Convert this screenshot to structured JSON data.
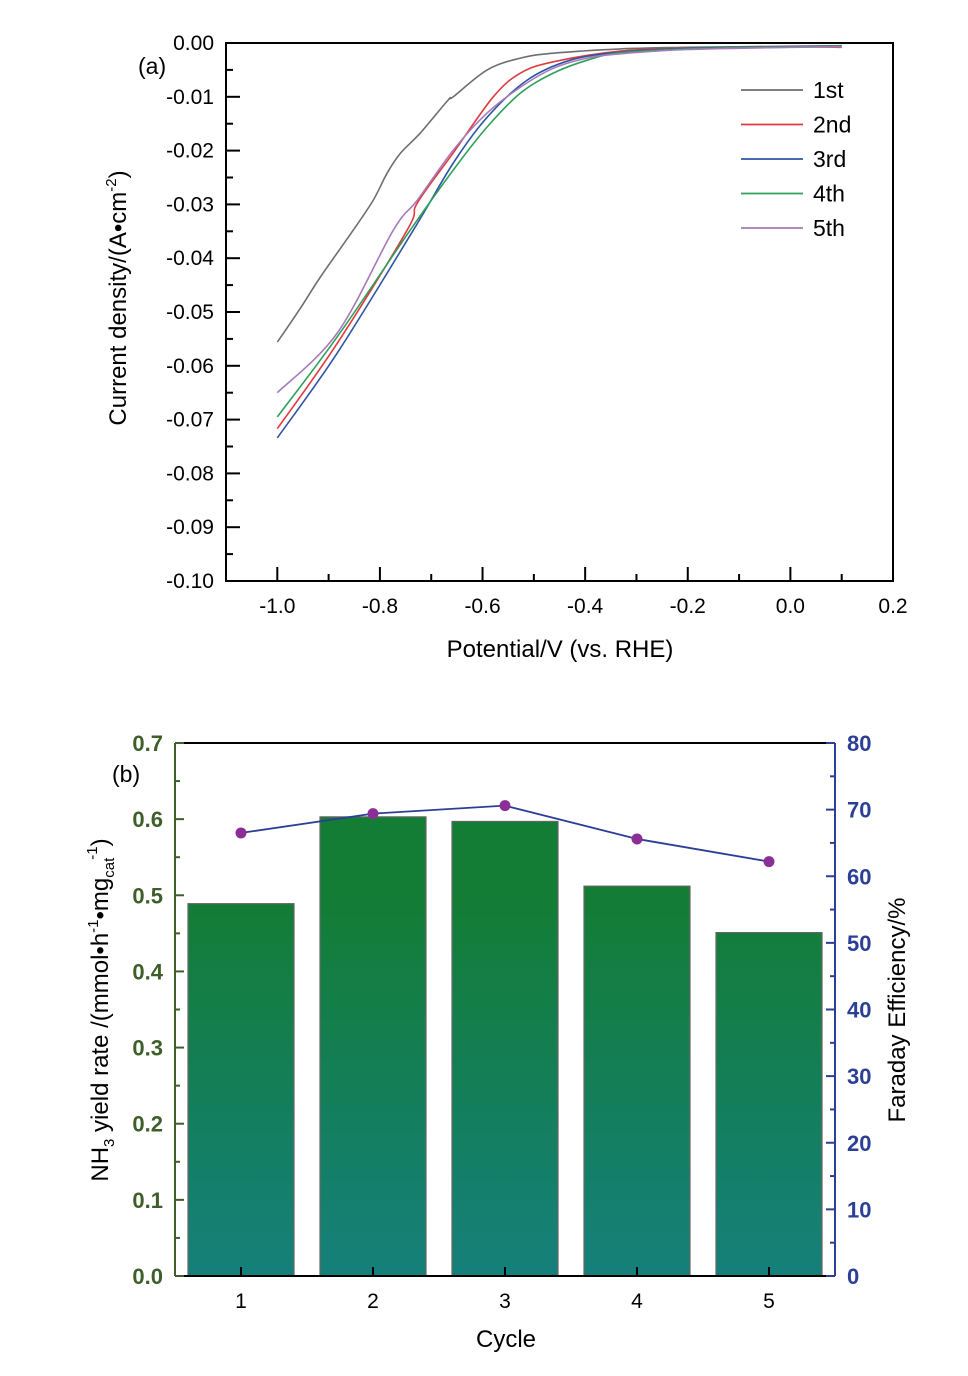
{
  "chart_data": [
    {
      "panel": "(a)",
      "type": "line",
      "xlabel": "Potential/V (vs. RHE)",
      "ylabel": "Current density/(A•cm-2)",
      "ylabel_parts": {
        "main": "Current density/(A•cm",
        "sup": "-2",
        "end": ")"
      },
      "xlim": [
        -1.1,
        0.2
      ],
      "ylim": [
        -0.1,
        0.0
      ],
      "xticks": [
        -1.0,
        -0.8,
        -0.6,
        -0.4,
        -0.2,
        0.0,
        0.2
      ],
      "xtick_labels": [
        "-1.0",
        "-0.8",
        "-0.6",
        "-0.4",
        "-0.2",
        "0.0",
        "0.2"
      ],
      "yticks": [
        0.0,
        -0.01,
        -0.02,
        -0.03,
        -0.04,
        -0.05,
        -0.06,
        -0.07,
        -0.08,
        -0.09,
        -0.1
      ],
      "ytick_labels": [
        "0.00",
        "-0.01",
        "-0.02",
        "-0.03",
        "-0.04",
        "-0.05",
        "-0.06",
        "-0.07",
        "-0.08",
        "-0.09",
        "-0.10"
      ],
      "legend_position": "top-right",
      "grid": false,
      "series": [
        {
          "name": "1st",
          "color": "#6e6e6e",
          "x": [
            -1.0,
            -0.955,
            -0.916,
            -0.852,
            -0.813,
            -0.786,
            -0.76,
            -0.721,
            -0.667,
            -0.657,
            -0.591,
            -0.526,
            -0.462,
            -0.331,
            -0.2,
            0.0,
            0.1
          ],
          "y": [
            -0.0556,
            -0.0493,
            -0.0435,
            -0.0348,
            -0.0292,
            -0.0242,
            -0.0205,
            -0.0167,
            -0.0106,
            -0.01,
            -0.005,
            -0.0028,
            -0.0019,
            -0.0011,
            -0.0008,
            -0.0006,
            -0.0005
          ]
        },
        {
          "name": "2nd",
          "color": "#e0393e",
          "x": [
            -1.0,
            -0.883,
            -0.747,
            -0.727,
            -0.657,
            -0.579,
            -0.526,
            -0.462,
            -0.331,
            -0.2,
            0.0,
            0.1
          ],
          "y": [
            -0.0717,
            -0.0558,
            -0.0348,
            -0.0297,
            -0.0204,
            -0.01,
            -0.0056,
            -0.0035,
            -0.0015,
            -0.001,
            -0.0007,
            -0.0008
          ]
        },
        {
          "name": "3rd",
          "color": "#2e55a5",
          "x": [
            -1.0,
            -0.883,
            -0.735,
            -0.657,
            -0.591,
            -0.513,
            -0.429,
            -0.331,
            -0.2,
            0.0,
            0.1
          ],
          "y": [
            -0.0734,
            -0.0576,
            -0.0348,
            -0.0223,
            -0.0138,
            -0.0069,
            -0.0032,
            -0.0017,
            -0.001,
            -0.0007,
            -0.0006
          ]
        },
        {
          "name": "4th",
          "color": "#2ea05a",
          "x": [
            -1.0,
            -0.883,
            -0.741,
            -0.657,
            -0.591,
            -0.526,
            -0.462,
            -0.396,
            -0.331,
            -0.2,
            0.0,
            0.1
          ],
          "y": [
            -0.0695,
            -0.0546,
            -0.0348,
            -0.0236,
            -0.0156,
            -0.0093,
            -0.0056,
            -0.0032,
            -0.0018,
            -0.0011,
            -0.0007,
            -0.0006
          ]
        },
        {
          "name": "5th",
          "color": "#a77ab9",
          "x": [
            -1.0,
            -0.883,
            -0.774,
            -0.727,
            -0.657,
            -0.591,
            -0.526,
            -0.462,
            -0.396,
            -0.331,
            -0.2,
            0.0,
            0.1
          ],
          "y": [
            -0.065,
            -0.0539,
            -0.0348,
            -0.0292,
            -0.0199,
            -0.013,
            -0.0082,
            -0.0047,
            -0.0028,
            -0.002,
            -0.0012,
            -0.0008,
            -0.0007
          ]
        }
      ]
    },
    {
      "panel": "(b)",
      "type": "bar",
      "xlabel": "Cycle",
      "categories": [
        "1",
        "2",
        "3",
        "4",
        "5"
      ],
      "ylabel_left_parts": {
        "a": "NH",
        "sub1": "3",
        "b": " yield rate /(mmol•h",
        "sup1": "-1",
        "c": "•mg",
        "sub2": "cat",
        "sup2": "-1",
        "d": ")"
      },
      "ylabel_left": "NH3 yield rate /(mmol•h-1•mgcat-1)",
      "ylabel_right": "Faraday Efficiency/%",
      "ylim_left": [
        0.0,
        0.7
      ],
      "ylim_right": [
        0,
        80
      ],
      "yticks_left": [
        0.0,
        0.1,
        0.2,
        0.3,
        0.4,
        0.5,
        0.6,
        0.7
      ],
      "ytick_labels_left": [
        "0.0",
        "0.1",
        "0.2",
        "0.3",
        "0.4",
        "0.5",
        "0.6",
        "0.7"
      ],
      "yticks_right": [
        0,
        10,
        20,
        30,
        40,
        50,
        60,
        70,
        80
      ],
      "ytick_labels_right": [
        "0",
        "10",
        "20",
        "30",
        "40",
        "50",
        "60",
        "70",
        "80"
      ],
      "left_axis_color": "#3e5e2a",
      "right_axis_color": "#2b3f96",
      "grid": false,
      "series": [
        {
          "name": "NH3 yield rate",
          "type": "bar",
          "axis": "left",
          "color_top": "#137d36",
          "color_bottom": "#15807b",
          "values": [
            0.489,
            0.603,
            0.597,
            0.512,
            0.451
          ]
        },
        {
          "name": "Faraday Efficiency",
          "type": "line",
          "axis": "right",
          "line_color": "#2b3f96",
          "marker_color": "#8b2f96",
          "values": [
            66.5,
            69.4,
            70.6,
            65.6,
            62.2
          ]
        }
      ]
    }
  ]
}
